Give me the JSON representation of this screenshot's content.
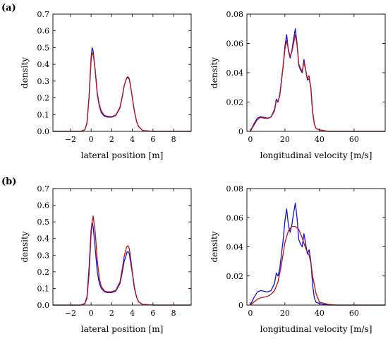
{
  "panel_labels": [
    "(a)",
    "(b)"
  ],
  "chart_data": [
    {
      "panel": "(a)",
      "type": "line",
      "title": "",
      "xlabel": "lateral position [m]",
      "ylabel": "density",
      "xlim": [
        -3.7,
        9.7
      ],
      "ylim": [
        0,
        0.7
      ],
      "xticks": [
        -2,
        0,
        2,
        4,
        6,
        8
      ],
      "xtick_labels": [
        "−2",
        "0",
        "2",
        "4",
        "6",
        "8"
      ],
      "yticks": [
        0,
        0.1,
        0.2,
        0.3,
        0.4,
        0.5,
        0.6,
        0.7
      ],
      "ytick_labels": [
        "0.0",
        "0.1",
        "0.2",
        "0.3",
        "0.4",
        "0.5",
        "0.6",
        "0.7"
      ],
      "colors": {
        "blue": "#1010e0",
        "red": "#b81414"
      },
      "series": [
        {
          "color": "#1010e0",
          "x": [
            -3.7,
            -1.0,
            -0.6,
            -0.4,
            -0.2,
            0.0,
            0.1,
            0.2,
            0.4,
            0.6,
            0.8,
            1.0,
            1.3,
            1.6,
            2.0,
            2.4,
            2.8,
            3.0,
            3.2,
            3.4,
            3.5,
            3.6,
            3.7,
            3.8,
            4.0,
            4.2,
            4.4,
            4.6,
            5.0,
            6.0,
            9.7
          ],
          "y": [
            0,
            0,
            0.01,
            0.05,
            0.2,
            0.44,
            0.5,
            0.48,
            0.36,
            0.22,
            0.15,
            0.11,
            0.09,
            0.085,
            0.085,
            0.095,
            0.14,
            0.2,
            0.27,
            0.31,
            0.32,
            0.32,
            0.31,
            0.28,
            0.2,
            0.12,
            0.06,
            0.03,
            0.005,
            0,
            0
          ]
        },
        {
          "color": "#b81414",
          "x": [
            -3.7,
            -1.0,
            -0.6,
            -0.4,
            -0.2,
            0.0,
            0.1,
            0.2,
            0.4,
            0.6,
            0.8,
            1.0,
            1.3,
            1.6,
            2.0,
            2.4,
            2.8,
            3.0,
            3.2,
            3.4,
            3.5,
            3.6,
            3.7,
            3.8,
            4.0,
            4.2,
            4.4,
            4.6,
            5.0,
            6.0,
            9.7
          ],
          "y": [
            0,
            0,
            0.01,
            0.05,
            0.2,
            0.42,
            0.47,
            0.46,
            0.37,
            0.23,
            0.16,
            0.12,
            0.095,
            0.09,
            0.088,
            0.098,
            0.145,
            0.2,
            0.27,
            0.31,
            0.325,
            0.325,
            0.315,
            0.28,
            0.2,
            0.12,
            0.06,
            0.03,
            0.005,
            0,
            0
          ]
        }
      ]
    },
    {
      "panel": "(a)",
      "type": "line",
      "title": "",
      "xlabel": "longitudinal velocity [m/s]",
      "ylabel": "density",
      "xlim": [
        -2,
        78
      ],
      "ylim": [
        0,
        0.08
      ],
      "xticks": [
        0,
        20,
        40,
        60
      ],
      "xtick_labels": [
        "0",
        "20",
        "40",
        "60"
      ],
      "yticks": [
        0,
        0.02,
        0.04,
        0.06,
        0.08
      ],
      "ytick_labels": [
        "0",
        "0.02",
        "0.04",
        "0.06",
        "0.08"
      ],
      "series": [
        {
          "color": "#1010e0",
          "x": [
            0,
            2,
            4,
            6,
            8,
            10,
            12,
            14,
            15,
            16,
            17,
            18,
            19,
            20,
            21,
            22,
            23,
            24,
            25,
            26,
            27,
            28,
            29,
            30,
            31,
            32,
            33,
            34,
            35,
            36,
            37,
            38,
            40,
            45,
            50,
            78
          ],
          "y": [
            0,
            0.005,
            0.009,
            0.01,
            0.0095,
            0.009,
            0.01,
            0.015,
            0.022,
            0.02,
            0.025,
            0.035,
            0.045,
            0.058,
            0.066,
            0.055,
            0.05,
            0.055,
            0.063,
            0.07,
            0.06,
            0.045,
            0.042,
            0.04,
            0.049,
            0.042,
            0.035,
            0.036,
            0.03,
            0.014,
            0.005,
            0.002,
            0.001,
            0,
            0,
            0
          ]
        },
        {
          "color": "#b81414",
          "x": [
            0,
            2,
            4,
            6,
            8,
            10,
            12,
            14,
            15,
            16,
            17,
            18,
            19,
            20,
            21,
            22,
            23,
            24,
            25,
            26,
            27,
            28,
            29,
            30,
            31,
            32,
            33,
            34,
            35,
            36,
            37,
            38,
            40,
            45,
            50,
            78
          ],
          "y": [
            0,
            0.004,
            0.008,
            0.0095,
            0.009,
            0.0088,
            0.0098,
            0.014,
            0.021,
            0.021,
            0.024,
            0.034,
            0.045,
            0.056,
            0.062,
            0.056,
            0.051,
            0.054,
            0.06,
            0.066,
            0.059,
            0.046,
            0.043,
            0.041,
            0.047,
            0.042,
            0.036,
            0.038,
            0.029,
            0.013,
            0.005,
            0.002,
            0.001,
            0,
            0,
            0
          ]
        }
      ]
    },
    {
      "panel": "(b)",
      "type": "line",
      "title": "",
      "xlabel": "lateral position [m]",
      "ylabel": "density",
      "xlim": [
        -3.7,
        9.7
      ],
      "ylim": [
        0,
        0.7
      ],
      "xticks": [
        -2,
        0,
        2,
        4,
        6,
        8
      ],
      "xtick_labels": [
        "−2",
        "0",
        "2",
        "4",
        "6",
        "8"
      ],
      "yticks": [
        0,
        0.1,
        0.2,
        0.3,
        0.4,
        0.5,
        0.6,
        0.7
      ],
      "ytick_labels": [
        "0.0",
        "0.1",
        "0.2",
        "0.3",
        "0.4",
        "0.5",
        "0.6",
        "0.7"
      ],
      "series": [
        {
          "color": "#1010e0",
          "x": [
            -3.7,
            -1.0,
            -0.6,
            -0.4,
            -0.2,
            0.0,
            0.1,
            0.2,
            0.4,
            0.6,
            0.8,
            1.0,
            1.3,
            1.6,
            2.0,
            2.4,
            2.8,
            3.0,
            3.2,
            3.4,
            3.5,
            3.6,
            3.7,
            3.8,
            4.0,
            4.2,
            4.4,
            4.6,
            5.0,
            6.0,
            9.7
          ],
          "y": [
            0,
            0,
            0.01,
            0.05,
            0.22,
            0.45,
            0.5,
            0.47,
            0.34,
            0.2,
            0.13,
            0.1,
            0.08,
            0.075,
            0.075,
            0.085,
            0.13,
            0.19,
            0.26,
            0.3,
            0.32,
            0.32,
            0.31,
            0.27,
            0.19,
            0.1,
            0.05,
            0.02,
            0.004,
            0,
            0
          ]
        },
        {
          "color": "#b81414",
          "x": [
            -3.7,
            -1.0,
            -0.6,
            -0.4,
            -0.2,
            0.0,
            0.1,
            0.2,
            0.4,
            0.6,
            0.8,
            1.0,
            1.3,
            1.6,
            2.0,
            2.4,
            2.8,
            3.0,
            3.2,
            3.4,
            3.5,
            3.6,
            3.7,
            3.8,
            4.0,
            4.2,
            4.4,
            4.6,
            5.0,
            6.0,
            9.7
          ],
          "y": [
            0,
            0,
            0.008,
            0.04,
            0.18,
            0.42,
            0.5,
            0.535,
            0.44,
            0.27,
            0.16,
            0.11,
            0.085,
            0.08,
            0.08,
            0.09,
            0.14,
            0.21,
            0.29,
            0.34,
            0.355,
            0.355,
            0.34,
            0.3,
            0.2,
            0.11,
            0.05,
            0.02,
            0.004,
            0,
            0
          ]
        }
      ]
    },
    {
      "panel": "(b)",
      "type": "line",
      "title": "",
      "xlabel": "longitudinal velocity [m/s]",
      "ylabel": "density",
      "xlim": [
        -2,
        78
      ],
      "ylim": [
        0,
        0.08
      ],
      "xticks": [
        0,
        20,
        40,
        60
      ],
      "xtick_labels": [
        "0",
        "20",
        "40",
        "60"
      ],
      "yticks": [
        0,
        0.02,
        0.04,
        0.06,
        0.08
      ],
      "ytick_labels": [
        "0",
        "0.02",
        "0.04",
        "0.06",
        "0.08"
      ],
      "series": [
        {
          "color": "#1010e0",
          "x": [
            0,
            2,
            4,
            6,
            8,
            10,
            12,
            14,
            15,
            16,
            17,
            18,
            19,
            20,
            21,
            22,
            23,
            24,
            25,
            26,
            27,
            28,
            29,
            30,
            31,
            32,
            33,
            34,
            35,
            36,
            37,
            38,
            40,
            45,
            50,
            78
          ],
          "y": [
            0,
            0.005,
            0.009,
            0.01,
            0.0095,
            0.009,
            0.01,
            0.015,
            0.022,
            0.02,
            0.025,
            0.035,
            0.045,
            0.058,
            0.066,
            0.055,
            0.05,
            0.055,
            0.063,
            0.07,
            0.06,
            0.045,
            0.042,
            0.04,
            0.049,
            0.042,
            0.035,
            0.038,
            0.03,
            0.014,
            0.005,
            0.002,
            0.001,
            0,
            0,
            0
          ]
        },
        {
          "color": "#b81414",
          "x": [
            0,
            2,
            4,
            6,
            8,
            10,
            12,
            14,
            16,
            18,
            20,
            22,
            24,
            26,
            28,
            30,
            32,
            34,
            35,
            36,
            38,
            40,
            45,
            50,
            78
          ],
          "y": [
            0,
            0.002,
            0.004,
            0.005,
            0.0055,
            0.006,
            0.0075,
            0.01,
            0.016,
            0.028,
            0.043,
            0.051,
            0.054,
            0.054,
            0.052,
            0.046,
            0.039,
            0.034,
            0.029,
            0.02,
            0.008,
            0.002,
            0.0005,
            0,
            0
          ]
        }
      ]
    }
  ]
}
